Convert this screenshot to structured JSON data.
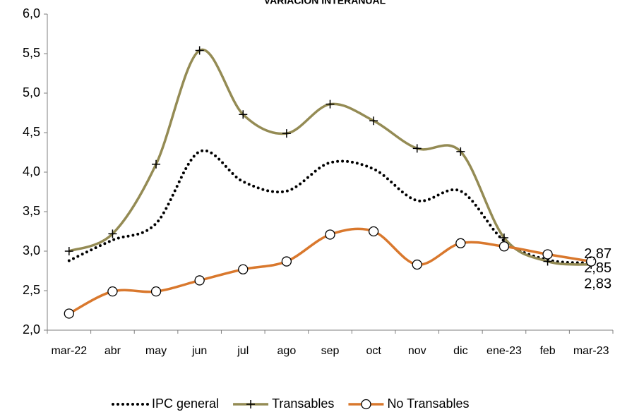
{
  "chart_data": {
    "type": "line",
    "title": "VARIACIÓN INTERANUAL",
    "categories": [
      "mar-22",
      "abr",
      "may",
      "jun",
      "jul",
      "ago",
      "sep",
      "oct",
      "nov",
      "dic",
      "ene-23",
      "feb",
      "mar-23"
    ],
    "ylim": [
      2.0,
      6.0
    ],
    "yticks": [
      {
        "value": 2.0,
        "label": "2,0"
      },
      {
        "value": 2.5,
        "label": "2,5"
      },
      {
        "value": 3.0,
        "label": "3,0"
      },
      {
        "value": 3.5,
        "label": "3,5"
      },
      {
        "value": 4.0,
        "label": "4,0"
      },
      {
        "value": 4.5,
        "label": "4,5"
      },
      {
        "value": 5.0,
        "label": "5,0"
      },
      {
        "value": 5.5,
        "label": "5,5"
      },
      {
        "value": 6.0,
        "label": "6,0"
      }
    ],
    "grid": false,
    "series": [
      {
        "name": "IPC general",
        "color": "#000000",
        "marker": "none",
        "dash": "dotted",
        "values": [
          2.88,
          3.14,
          3.35,
          4.26,
          3.88,
          3.76,
          4.12,
          4.04,
          3.64,
          3.76,
          3.13,
          2.89,
          2.85
        ],
        "value_labels": [
          null,
          null,
          null,
          null,
          null,
          null,
          null,
          null,
          null,
          null,
          null,
          null,
          "2,85"
        ]
      },
      {
        "name": "Transables",
        "color": "#948b54",
        "marker": "plus",
        "values": [
          3.0,
          3.22,
          4.1,
          5.54,
          4.73,
          4.49,
          4.86,
          4.65,
          4.3,
          4.26,
          3.17,
          2.87,
          2.83
        ],
        "value_labels": [
          null,
          null,
          null,
          null,
          null,
          null,
          null,
          null,
          null,
          null,
          null,
          null,
          "2,83"
        ]
      },
      {
        "name": "No Transables",
        "color": "#d9782d",
        "marker": "circle",
        "values": [
          2.21,
          2.49,
          2.49,
          2.63,
          2.77,
          2.87,
          3.21,
          3.25,
          2.83,
          3.1,
          3.06,
          2.96,
          2.87
        ],
        "value_labels": [
          null,
          null,
          null,
          null,
          null,
          null,
          null,
          null,
          null,
          null,
          null,
          null,
          "2,87"
        ]
      }
    ]
  }
}
